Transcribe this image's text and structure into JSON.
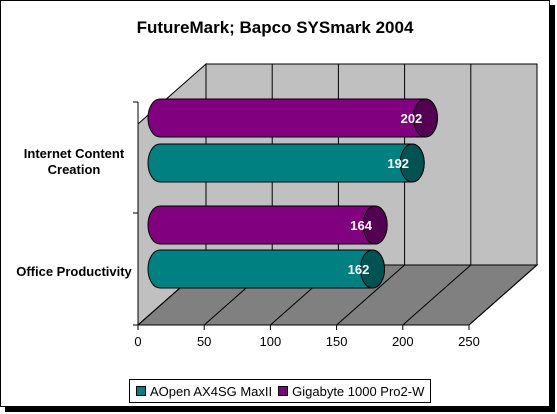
{
  "chart_data": {
    "type": "bar",
    "orientation": "horizontal",
    "three_d": true,
    "bar_shape": "cylinder",
    "title": "FutureMark; Bapco SYSmark 2004",
    "xlabel": "",
    "ylabel": "",
    "categories": [
      "Internet Content Creation",
      "Office Productivity"
    ],
    "series": [
      {
        "name": "AOpen AX4SG MaxII",
        "values": [
          192,
          162
        ],
        "color": "#008080"
      },
      {
        "name": "Gigabyte 1000 Pro2-W",
        "values": [
          202,
          164
        ],
        "color": "#800080"
      }
    ],
    "xlim": [
      0,
      250
    ],
    "x_ticks": [
      "0",
      "50",
      "100",
      "150",
      "200",
      "250"
    ],
    "grid": true,
    "legend_position": "bottom",
    "wall_color": "#c0c0c0",
    "floor_color": "#808080"
  }
}
